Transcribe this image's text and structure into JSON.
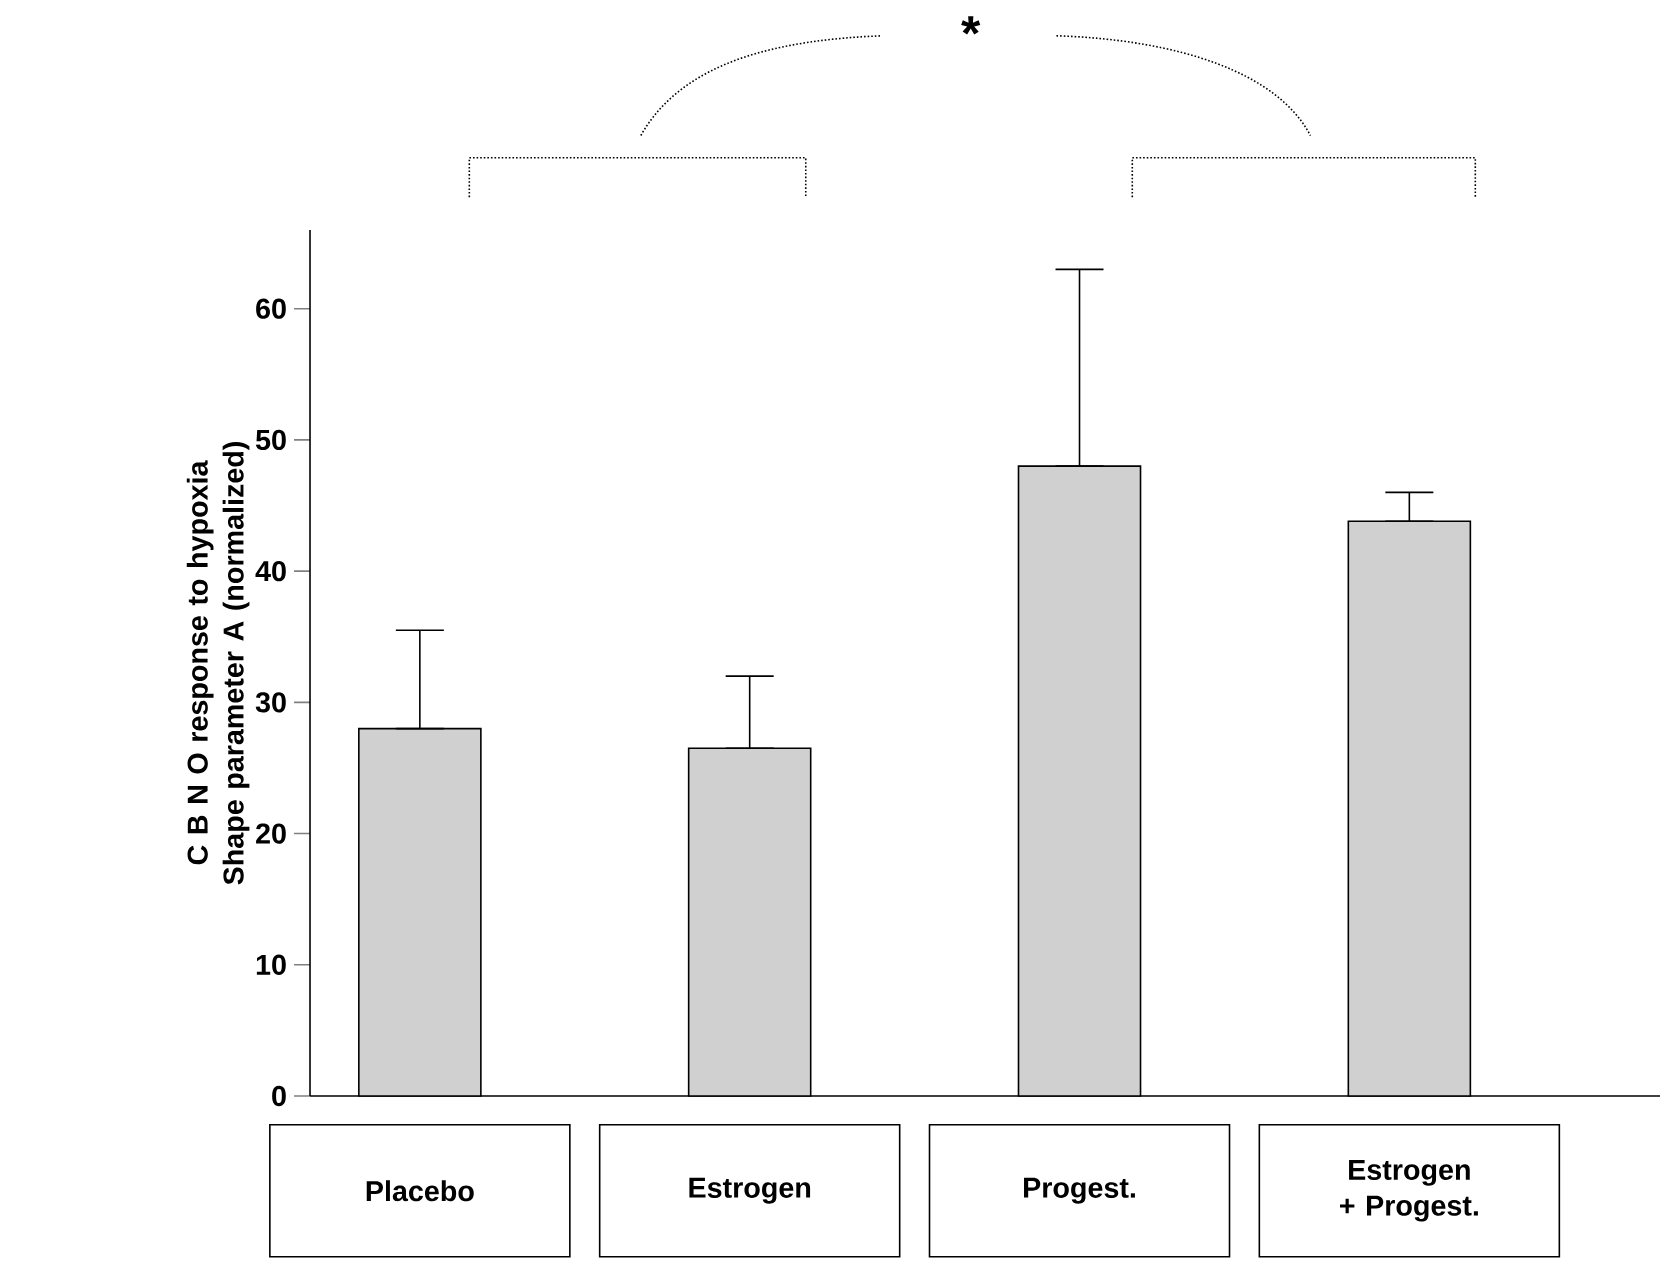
{
  "chart_data": {
    "type": "bar",
    "ylabel": "C B N O response to hypoxia Shape parameter A (normalized)",
    "categories": [
      "Placebo",
      "Estrogen",
      "Progest.",
      "Estrogen + Progest."
    ],
    "values": [
      28,
      26.5,
      48,
      43.8
    ],
    "errors": [
      [
        28,
        35.5
      ],
      [
        26.5,
        32
      ],
      [
        48,
        63
      ],
      [
        43.8,
        46
      ]
    ],
    "color": "#d0d0d0",
    "ylim": [
      0,
      66
    ],
    "yticks": [
      0,
      10,
      20,
      30,
      40,
      50,
      60
    ],
    "grid": false,
    "annotations": [
      "*"
    ]
  }
}
